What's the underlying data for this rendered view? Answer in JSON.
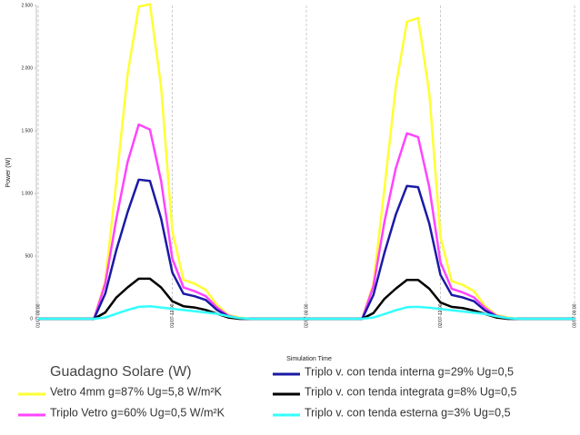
{
  "chart_data": {
    "type": "line",
    "y_label": "Power (W)",
    "x_label": "Simulation Time",
    "legend_title": "Guadagno Solare (W)",
    "x": [
      0,
      1,
      2,
      3,
      4,
      5,
      6,
      7,
      8,
      9,
      10,
      11,
      12,
      13,
      14,
      15,
      16,
      17,
      18,
      19,
      20,
      21,
      22,
      23,
      24,
      25,
      26,
      27,
      28,
      29,
      30,
      31,
      32,
      33,
      34,
      35,
      36,
      37,
      38,
      39,
      40,
      41,
      42,
      43,
      44,
      45,
      46,
      47,
      48
    ],
    "xlim": [
      0,
      48
    ],
    "xticks": [
      {
        "value": 0,
        "label": "01/07 00:00"
      },
      {
        "value": 12,
        "label": "01/07 12:00"
      },
      {
        "value": 24,
        "label": "02/07 00:00"
      },
      {
        "value": 36,
        "label": "02/07 12:00"
      },
      {
        "value": 48,
        "label": "03/07 00:00"
      }
    ],
    "ylim": [
      0,
      2500
    ],
    "yticks": [
      0,
      500,
      {
        "value": 1000,
        "label": "1.000"
      },
      {
        "value": 1500,
        "label": "1.500"
      },
      {
        "value": 2000,
        "label": "2.000"
      },
      {
        "value": 2500,
        "label": "2.500"
      }
    ],
    "grid": "x",
    "series": [
      {
        "name": "Vetro 4mm g=87% Ug=5,8 W/m²K",
        "color": "#ffff33",
        "values": [
          0,
          0,
          0,
          0,
          0,
          0,
          300,
          1100,
          1950,
          2490,
          2510,
          1850,
          700,
          310,
          280,
          230,
          110,
          30,
          10,
          0,
          0,
          0,
          0,
          0,
          0,
          0,
          0,
          0,
          0,
          0,
          280,
          1050,
          1850,
          2370,
          2400,
          1800,
          650,
          300,
          270,
          220,
          100,
          30,
          10,
          0,
          0,
          0,
          0,
          0,
          0
        ]
      },
      {
        "name": "Triplo Vetro g=60% Ug=0,5 W/m²K",
        "color": "#ff44ff",
        "values": [
          0,
          0,
          0,
          0,
          0,
          0,
          280,
          800,
          1250,
          1550,
          1510,
          1100,
          480,
          250,
          220,
          180,
          90,
          25,
          5,
          0,
          0,
          0,
          0,
          0,
          0,
          0,
          0,
          0,
          0,
          0,
          260,
          780,
          1200,
          1480,
          1450,
          1050,
          450,
          240,
          210,
          170,
          85,
          25,
          5,
          0,
          0,
          0,
          0,
          0,
          0
        ]
      },
      {
        "name": "Triplo v. con tenda interna g=29% Ug=0,5",
        "color": "#1a1aa6",
        "values": [
          0,
          0,
          0,
          0,
          0,
          0,
          200,
          550,
          850,
          1110,
          1100,
          800,
          370,
          200,
          180,
          150,
          70,
          20,
          0,
          0,
          0,
          0,
          0,
          0,
          0,
          0,
          0,
          0,
          0,
          0,
          190,
          530,
          830,
          1060,
          1050,
          760,
          350,
          190,
          170,
          140,
          65,
          20,
          0,
          0,
          0,
          0,
          0,
          0,
          0
        ]
      },
      {
        "name": "Triplo v. con tenda integrata g=8% Ug=0,5",
        "color": "#000000",
        "values": [
          0,
          0,
          0,
          0,
          0,
          0,
          50,
          170,
          250,
          320,
          320,
          250,
          140,
          100,
          90,
          70,
          40,
          10,
          0,
          0,
          0,
          0,
          0,
          0,
          0,
          0,
          0,
          0,
          0,
          0,
          45,
          160,
          240,
          310,
          310,
          240,
          130,
          95,
          85,
          65,
          38,
          10,
          0,
          0,
          0,
          0,
          0,
          0,
          0
        ]
      },
      {
        "name": "Triplo v. con tenda esterna g=3% Ug=0,5",
        "color": "#33ffff",
        "values": [
          0,
          0,
          0,
          0,
          0,
          0,
          10,
          40,
          70,
          95,
          100,
          90,
          80,
          70,
          60,
          50,
          40,
          20,
          5,
          0,
          0,
          0,
          0,
          0,
          0,
          0,
          0,
          0,
          0,
          0,
          10,
          38,
          68,
          92,
          95,
          88,
          78,
          68,
          58,
          48,
          38,
          20,
          5,
          0,
          0,
          0,
          0,
          0,
          0
        ]
      }
    ]
  }
}
